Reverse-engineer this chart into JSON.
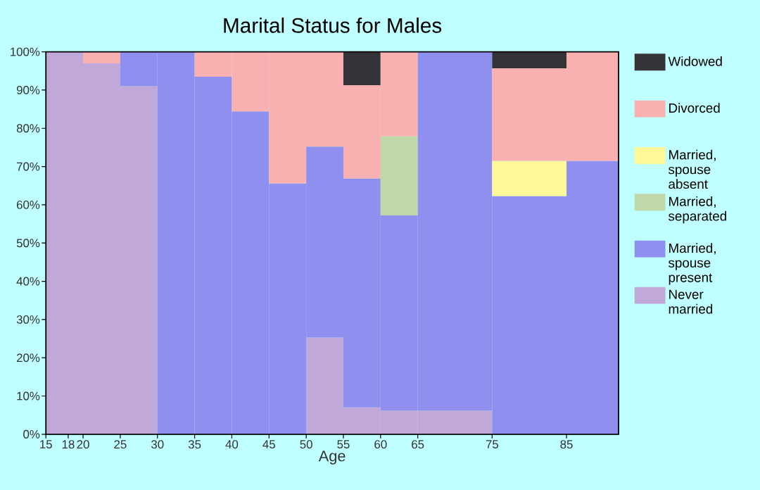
{
  "chart_data": {
    "type": "bar",
    "stacked": true,
    "title": "Marital Status for Males",
    "xlabel": "Age",
    "x": [
      16.5,
      19,
      22.5,
      27.5,
      32.5,
      37.5,
      42.5,
      47.5,
      52.5,
      57.5,
      62.5,
      70,
      80,
      88.5
    ],
    "xlim": [
      15,
      92
    ],
    "xticks": [
      15,
      18,
      20,
      25,
      30,
      35,
      40,
      45,
      50,
      55,
      60,
      65,
      75,
      85
    ],
    "ylim": [
      0,
      100
    ],
    "yticks": [
      {
        "value": 0,
        "label": "0%"
      },
      {
        "value": 10,
        "label": "10%"
      },
      {
        "value": 20,
        "label": "20%"
      },
      {
        "value": 30,
        "label": "30%"
      },
      {
        "value": 40,
        "label": "40%"
      },
      {
        "value": 50,
        "label": "50%"
      },
      {
        "value": 60,
        "label": "60%"
      },
      {
        "value": 70,
        "label": "70%"
      },
      {
        "value": 80,
        "label": "80%"
      },
      {
        "value": 90,
        "label": "90%"
      },
      {
        "value": 100,
        "label": "100%"
      }
    ],
    "legend": "right",
    "series": [
      {
        "name": "Never married",
        "color": "#c0a8d8",
        "values": [
          100,
          100,
          97,
          91,
          0,
          0,
          0,
          0,
          25.3,
          7.0,
          6.2,
          6.2,
          0,
          0
        ]
      },
      {
        "name": "Married, spouse present",
        "color": "#8f8ff0",
        "values": [
          0,
          0,
          0,
          9,
          100,
          93.5,
          84.4,
          65.6,
          49.9,
          59.9,
          51.0,
          93.8,
          62.3,
          71.5
        ]
      },
      {
        "name": "Married, separated",
        "color": "#c0d8a8",
        "values": [
          0,
          0,
          0,
          0,
          0,
          0,
          0,
          0,
          0,
          0,
          20.7,
          0,
          0,
          0
        ]
      },
      {
        "name": "Married, spouse absent",
        "color": "#fff898",
        "values": [
          0,
          0,
          0,
          0,
          0,
          0,
          0,
          0,
          0,
          0,
          0,
          0,
          9.2,
          0
        ]
      },
      {
        "name": "Divorced",
        "color": "#f8b0b0",
        "values": [
          0,
          0,
          3,
          0,
          0,
          6.5,
          15.6,
          34.4,
          24.8,
          24.4,
          22.1,
          0,
          24.2,
          28.5
        ]
      },
      {
        "name": "Widowed",
        "color": "#333338",
        "values": [
          0,
          0,
          0,
          0,
          0,
          0,
          0,
          0,
          0,
          8.7,
          0,
          0,
          4.3,
          0
        ]
      }
    ]
  }
}
